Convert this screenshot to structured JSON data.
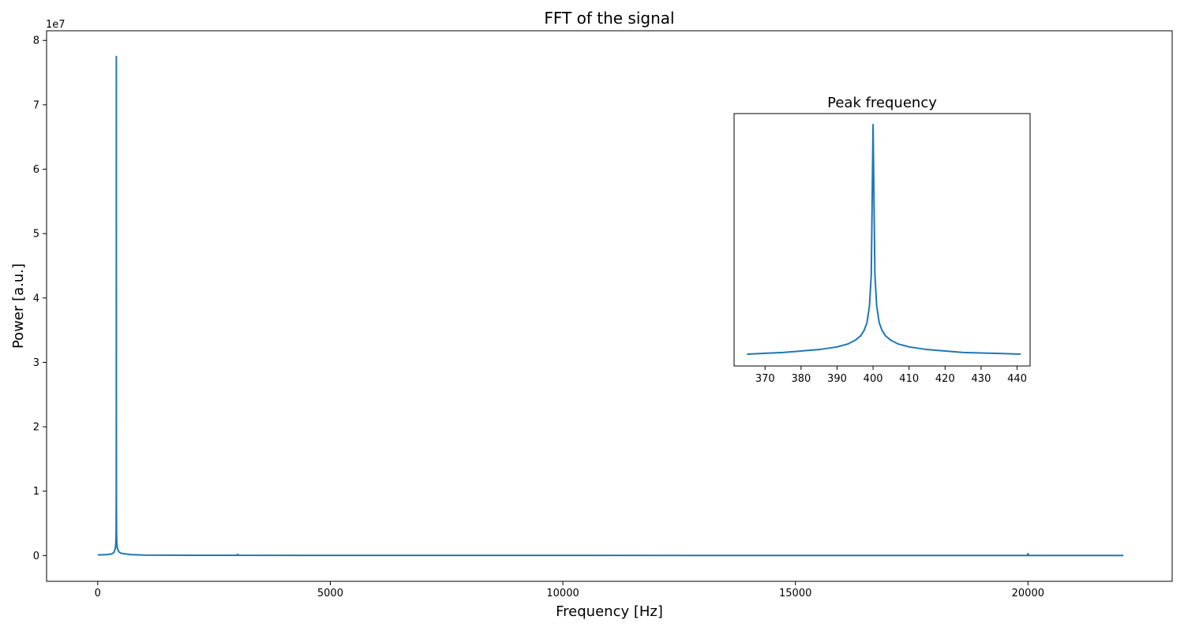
{
  "chart_data": [
    {
      "type": "line",
      "title": "FFT of the signal",
      "xlabel": "Frequency [Hz]",
      "ylabel": "Power [a.u.]",
      "y_scale_label": "1e7",
      "xlim": [
        -1100,
        23100
      ],
      "ylim": [
        -4000000,
        81500000
      ],
      "xticks": [
        0,
        5000,
        10000,
        15000,
        20000
      ],
      "xtick_labels": [
        "0",
        "5000",
        "10000",
        "15000",
        "20000"
      ],
      "yticks": [
        0,
        10000000,
        20000000,
        30000000,
        40000000,
        50000000,
        60000000,
        70000000,
        80000000
      ],
      "ytick_labels": [
        "0",
        "1",
        "2",
        "3",
        "4",
        "5",
        "6",
        "7",
        "8"
      ],
      "grid": false,
      "color": "#1f77b4",
      "series": [
        {
          "x": [
            0,
            100,
            200,
            300,
            350,
            380,
            390,
            395,
            398,
            399,
            400,
            401,
            402,
            405,
            410,
            420,
            450,
            500,
            700,
            1000,
            2000,
            3000,
            3010,
            3020,
            5000,
            10000,
            15000,
            19990,
            20000,
            20010,
            22050
          ],
          "y": [
            100000,
            120000,
            150000,
            250000,
            500000,
            1200000,
            2000000,
            3500000,
            9000000,
            20000000,
            77500000,
            20000000,
            9000000,
            3500000,
            2000000,
            1200000,
            600000,
            350000,
            150000,
            80000,
            50000,
            40000,
            200000,
            40000,
            30000,
            20000,
            15000,
            15000,
            300000,
            15000,
            10000
          ]
        }
      ]
    },
    {
      "type": "line",
      "title": "Peak frequency",
      "xlabel": "",
      "ylabel": "",
      "xlim": [
        361.4,
        443.6
      ],
      "ylim": [
        0,
        1
      ],
      "xticks": [
        370,
        380,
        390,
        400,
        410,
        420,
        430,
        440
      ],
      "xtick_labels": [
        "370",
        "380",
        "390",
        "400",
        "410",
        "420",
        "430",
        "440"
      ],
      "yticks": [],
      "grid": false,
      "color": "#1f77b4",
      "series": [
        {
          "x": [
            365,
            375,
            385,
            390,
            393,
            395,
            396.5,
            397.5,
            398.3,
            399,
            399.5,
            400,
            400.5,
            401,
            401.7,
            402.5,
            403.5,
            405,
            407,
            410,
            415,
            425,
            435,
            441
          ],
          "y": [
            0.05,
            0.057,
            0.069,
            0.08,
            0.092,
            0.107,
            0.125,
            0.148,
            0.18,
            0.25,
            0.38,
            1.0,
            0.38,
            0.25,
            0.18,
            0.148,
            0.125,
            0.107,
            0.092,
            0.08,
            0.069,
            0.057,
            0.053,
            0.05
          ]
        }
      ]
    }
  ]
}
